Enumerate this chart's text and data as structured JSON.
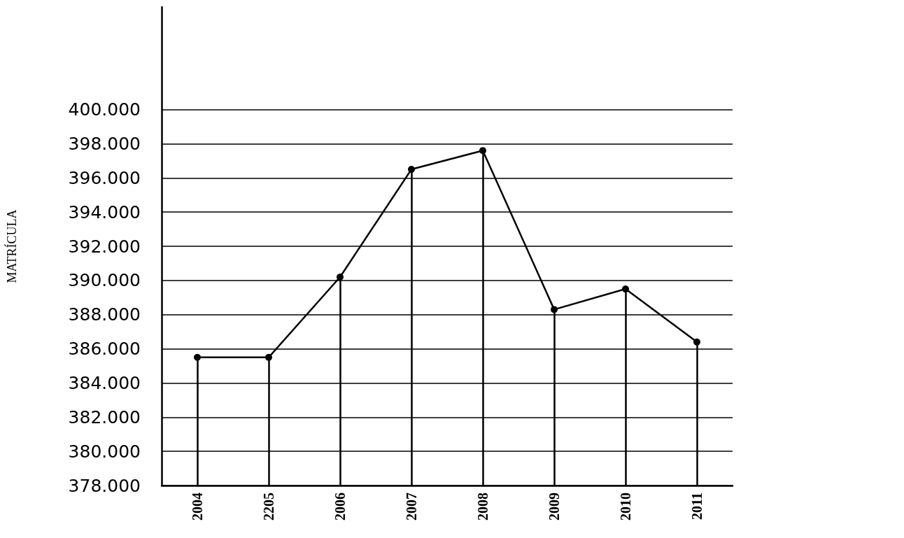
{
  "chart_data": {
    "type": "line",
    "ylabel": "MATRÍCULA",
    "line_style": "solid",
    "categories": [
      "2004",
      "2205",
      "2006",
      "2007",
      "2008",
      "2009",
      "2010",
      "2011"
    ],
    "series": [
      {
        "color": "#000000",
        "values": [
          385500,
          385500,
          390200,
          396500,
          397600,
          388300,
          389500,
          386400
        ]
      },
      {
        "type": "lollipop",
        "color": "#000000",
        "marker": "circle",
        "values": [
          385500,
          385500,
          390200,
          396500,
          397600,
          388300,
          389500,
          386400
        ]
      }
    ],
    "ylim": [
      378000,
      406000
    ],
    "yticks": [
      {
        "value": 378000,
        "label": "378.000"
      },
      {
        "value": 380000,
        "label": "380.000"
      },
      {
        "value": 382000,
        "label": "382.000"
      },
      {
        "value": 384000,
        "label": "384.000"
      },
      {
        "value": 386000,
        "label": "386.000"
      },
      {
        "value": 388000,
        "label": "388.000"
      },
      {
        "value": 390000,
        "label": "390.000"
      },
      {
        "value": 392000,
        "label": "392.000"
      },
      {
        "value": 394000,
        "label": "394.000"
      },
      {
        "value": 396000,
        "label": "396.000"
      },
      {
        "value": 398000,
        "label": "398.000"
      },
      {
        "value": 400000,
        "label": "400.000"
      }
    ],
    "grid": "y"
  }
}
